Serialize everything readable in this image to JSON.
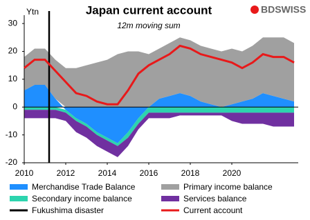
{
  "chart_data": {
    "type": "area",
    "title": "Japan current account",
    "subtitle": "12m moving sum",
    "y_label": "Ytn",
    "brand": "BDSWISS",
    "x": [
      2010,
      2010.5,
      2011,
      2011.5,
      2012,
      2012.5,
      2013,
      2013.5,
      2014,
      2014.5,
      2015,
      2015.5,
      2016,
      2016.5,
      2017,
      2017.5,
      2018,
      2018.5,
      2019,
      2019.5,
      2020,
      2020.5,
      2021,
      2021.5,
      2022,
      2022.5,
      2023
    ],
    "series": [
      {
        "name": "Merchandise Trade Balance",
        "color": "#1f8fff",
        "type": "area",
        "values": [
          6,
          8,
          8,
          3,
          -1,
          -4,
          -6,
          -9,
          -11,
          -13,
          -9,
          -4,
          0,
          3,
          4,
          5,
          4,
          2,
          1,
          0,
          1,
          2,
          3,
          5,
          4,
          3,
          2
        ]
      },
      {
        "name": "Primary income balance",
        "color": "#a0a0a0",
        "type": "area",
        "values": [
          12,
          13,
          13,
          14,
          14,
          14,
          15,
          16,
          17,
          19,
          20,
          20,
          19,
          18,
          19,
          20,
          20,
          20,
          20,
          20,
          20,
          18,
          19,
          20,
          21,
          22,
          21
        ]
      },
      {
        "name": "Secondary income balance",
        "color": "#2dd4ae",
        "type": "area",
        "values": [
          -1,
          -1,
          -1,
          -1,
          -1,
          -1,
          -1,
          -1,
          -1,
          -1,
          -2,
          -2,
          -2,
          -2,
          -2,
          -2,
          -2,
          -2,
          -2,
          -2,
          -2,
          -2,
          -2,
          -2,
          -2,
          -2,
          -2
        ]
      },
      {
        "name": "Services balance",
        "color": "#7030a0",
        "type": "area",
        "values": [
          -3,
          -3,
          -3,
          -3,
          -3,
          -4,
          -4,
          -4,
          -4,
          -4,
          -3,
          -2,
          -2,
          -2,
          -2,
          -1,
          -1,
          -1,
          -1,
          -1,
          -3,
          -4,
          -4,
          -4,
          -5,
          -5,
          -5
        ]
      },
      {
        "name": "Current account",
        "color": "#e8191a",
        "type": "line",
        "values": [
          14,
          17,
          17,
          13,
          9,
          5,
          4,
          2,
          1,
          1,
          6,
          12,
          15,
          17,
          19,
          22,
          21,
          19,
          18,
          17,
          16,
          14,
          16,
          19,
          18,
          18,
          16
        ]
      }
    ],
    "vline": {
      "name": "Fukushima disaster",
      "x": 2011.2,
      "color": "#000000"
    },
    "xlim": [
      2010,
      2023.2
    ],
    "xticks": [
      2010,
      2012,
      2014,
      2016,
      2018,
      2020
    ],
    "ylim": [
      -20,
      33
    ],
    "yticks": [
      -20,
      -10,
      0,
      10,
      20,
      30
    ]
  }
}
